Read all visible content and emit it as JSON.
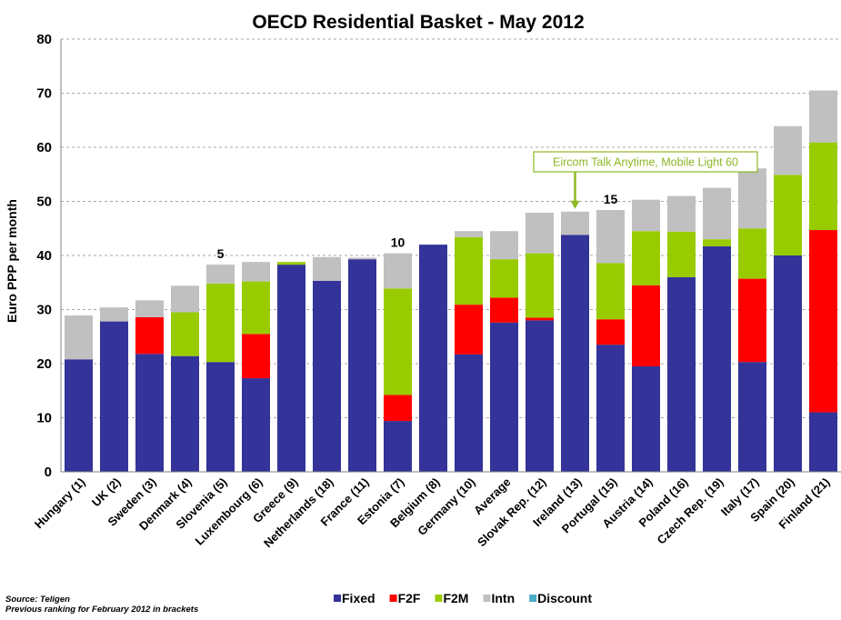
{
  "chart_data": {
    "type": "bar",
    "stacked": true,
    "title": "OECD Residential Basket - May 2012",
    "ylabel": "Euro  PPP per month",
    "xlabel": "",
    "ylim": [
      0,
      80
    ],
    "yticks": [
      0,
      10,
      20,
      30,
      40,
      50,
      60,
      70,
      80
    ],
    "grid": "horizontal dashed",
    "categories": [
      "Hungary (1)",
      "UK (2)",
      "Sweden (3)",
      "Denmark (4)",
      "Slovenia (5)",
      "Luxembourg (6)",
      "Greece (9)",
      "Netherlands (18)",
      "France (11)",
      "Estonia (7)",
      "Belgium (8)",
      "Germany (10)",
      "Average",
      "Slovak Rep. (12)",
      "Ireland (13)",
      "Portugal (15)",
      "Austria (14)",
      "Poland (16)",
      "Czech Rep. (19)",
      "Italy (17)",
      "Spain (20)",
      "Finland (21)"
    ],
    "series": [
      {
        "name": "Fixed",
        "color": "#333399",
        "values": [
          20.8,
          27.8,
          21.8,
          21.4,
          20.3,
          17.3,
          38.3,
          35.3,
          39.3,
          9.4,
          42.0,
          21.7,
          27.6,
          28.0,
          43.8,
          23.5,
          19.5,
          36.0,
          41.7,
          20.3,
          40.0,
          11.0
        ]
      },
      {
        "name": "F2F",
        "color": "#ff0000",
        "values": [
          0,
          0,
          6.8,
          0,
          0,
          8.2,
          0,
          0,
          0,
          4.8,
          0,
          9.2,
          4.6,
          0.5,
          0,
          4.7,
          15.0,
          0,
          0,
          15.4,
          0,
          33.7
        ]
      },
      {
        "name": "F2M",
        "color": "#99cc00",
        "values": [
          0,
          0,
          0,
          8.1,
          14.5,
          9.7,
          0.5,
          0,
          0,
          19.7,
          0,
          12.5,
          7.1,
          11.9,
          0,
          10.4,
          10.0,
          8.4,
          1.3,
          9.3,
          14.9,
          16.2
        ]
      },
      {
        "name": "Intn",
        "color": "#c0c0c0",
        "values": [
          8.1,
          2.6,
          3.1,
          4.9,
          3.5,
          3.6,
          0,
          4.4,
          0.3,
          6.5,
          0,
          1.1,
          5.2,
          7.5,
          4.3,
          9.8,
          5.8,
          6.6,
          9.5,
          11.1,
          9.0,
          9.6
        ]
      },
      {
        "name": "Discount",
        "color": "#4bacc6",
        "values": [
          0,
          0,
          0,
          0,
          0,
          0,
          0,
          0,
          0,
          0,
          0,
          0,
          0,
          0,
          0,
          0,
          0,
          0,
          0,
          0,
          0,
          0
        ]
      }
    ],
    "bar_annotations": [
      {
        "category": "Slovenia (5)",
        "text": "5"
      },
      {
        "category": "Estonia (7)",
        "text": "10"
      },
      {
        "category": "Portugal (15)",
        "text": "15"
      }
    ],
    "callout": {
      "category": "Ireland (13)",
      "text": "Eircom Talk Anytime, Mobile  Light 60",
      "color": "#8db824"
    },
    "legend": [
      "Fixed",
      "F2F",
      "F2M",
      "Intn",
      "Discount"
    ],
    "legend_placement": "bottom-center"
  },
  "footnote": {
    "source": "Source:  Teligen",
    "note": "Previous ranking for  February  2012 in brackets"
  }
}
